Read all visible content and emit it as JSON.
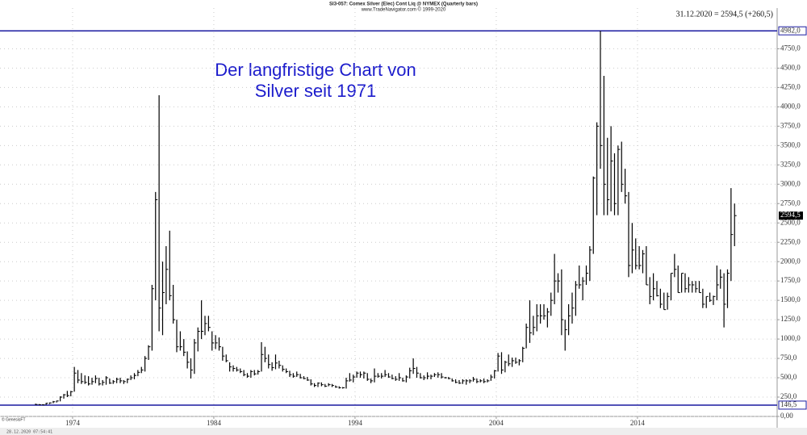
{
  "chart_data": {
    "type": "ohlc",
    "title": "SI3-057: Comex Silver (Elec) Cont Liq @ NYMEX  (Quarterly bars)",
    "subtitle": "www.TradeNavigator.com © 1999-2020",
    "last_quote": "31.12.2020 = 2594,5 (+260,5)",
    "annotation": [
      "Der langfristige Chart von",
      "Silver seit 1971"
    ],
    "source": "© GenesisFT",
    "timestamp": "28.12.2020 07:54:41",
    "color": "#000000",
    "line_color": "#1a1aa0",
    "grid": true,
    "xlim": [
      1968.86,
      2023.89
    ],
    "xticks": [
      1974,
      1984,
      1994,
      2004,
      2014
    ],
    "ylim": [
      0,
      5276
    ],
    "yticks": [
      {
        "value": 0,
        "label": "0,00"
      },
      {
        "value": 250,
        "label": "250,0"
      },
      {
        "value": 500,
        "label": "500,0"
      },
      {
        "value": 750,
        "label": "750,0"
      },
      {
        "value": 1000,
        "label": "1000,0"
      },
      {
        "value": 1250,
        "label": "1250,0"
      },
      {
        "value": 1500,
        "label": "1500,0"
      },
      {
        "value": 1750,
        "label": "1750,0"
      },
      {
        "value": 2000,
        "label": "2000,0"
      },
      {
        "value": 2250,
        "label": "2250,0"
      },
      {
        "value": 2500,
        "label": "2500,0"
      },
      {
        "value": 2750,
        "label": "2750,0"
      },
      {
        "value": 3000,
        "label": "3000,0"
      },
      {
        "value": 3250,
        "label": "3250,0"
      },
      {
        "value": 3500,
        "label": "3500,0"
      },
      {
        "value": 3750,
        "label": "3750,0"
      },
      {
        "value": 4000,
        "label": "4000,0"
      },
      {
        "value": 4250,
        "label": "4250,0"
      },
      {
        "value": 4500,
        "label": "4500,0"
      },
      {
        "value": 4750,
        "label": "4750,0"
      }
    ],
    "hlines": [
      {
        "value": 4982,
        "label": "4982,0"
      },
      {
        "value": 146.5,
        "label": "146,5"
      }
    ],
    "last_price": {
      "value": 2594.5,
      "label": "2594,5"
    },
    "x": [
      1971.375,
      1971.625,
      1971.875,
      1972.125,
      1972.375,
      1972.625,
      1972.875,
      1973.125,
      1973.375,
      1973.625,
      1973.875,
      1974.125,
      1974.375,
      1974.625,
      1974.875,
      1975.125,
      1975.375,
      1975.625,
      1975.875,
      1976.125,
      1976.375,
      1976.625,
      1976.875,
      1977.125,
      1977.375,
      1977.625,
      1977.875,
      1978.125,
      1978.375,
      1978.625,
      1978.875,
      1979.125,
      1979.375,
      1979.625,
      1979.875,
      1980.125,
      1980.375,
      1980.625,
      1980.875,
      1981.125,
      1981.375,
      1981.625,
      1981.875,
      1982.125,
      1982.375,
      1982.625,
      1982.875,
      1983.125,
      1983.375,
      1983.625,
      1983.875,
      1984.125,
      1984.375,
      1984.625,
      1984.875,
      1985.125,
      1985.375,
      1985.625,
      1985.875,
      1986.125,
      1986.375,
      1986.625,
      1986.875,
      1987.125,
      1987.375,
      1987.625,
      1987.875,
      1988.125,
      1988.375,
      1988.625,
      1988.875,
      1989.125,
      1989.375,
      1989.625,
      1989.875,
      1990.125,
      1990.375,
      1990.625,
      1990.875,
      1991.125,
      1991.375,
      1991.625,
      1991.875,
      1992.125,
      1992.375,
      1992.625,
      1992.875,
      1993.125,
      1993.375,
      1993.625,
      1993.875,
      1994.125,
      1994.375,
      1994.625,
      1994.875,
      1995.125,
      1995.375,
      1995.625,
      1995.875,
      1996.125,
      1996.375,
      1996.625,
      1996.875,
      1997.125,
      1997.375,
      1997.625,
      1997.875,
      1998.125,
      1998.375,
      1998.625,
      1998.875,
      1999.125,
      1999.375,
      1999.625,
      1999.875,
      2000.125,
      2000.375,
      2000.625,
      2000.875,
      2001.125,
      2001.375,
      2001.625,
      2001.875,
      2002.125,
      2002.375,
      2002.625,
      2002.875,
      2003.125,
      2003.375,
      2003.625,
      2003.875,
      2004.125,
      2004.375,
      2004.625,
      2004.875,
      2005.125,
      2005.375,
      2005.625,
      2005.875,
      2006.125,
      2006.375,
      2006.625,
      2006.875,
      2007.125,
      2007.375,
      2007.625,
      2007.875,
      2008.125,
      2008.375,
      2008.625,
      2008.875,
      2009.125,
      2009.375,
      2009.625,
      2009.875,
      2010.125,
      2010.375,
      2010.625,
      2010.875,
      2011.125,
      2011.375,
      2011.625,
      2011.875,
      2012.125,
      2012.375,
      2012.625,
      2012.875,
      2013.125,
      2013.375,
      2013.625,
      2013.875,
      2014.125,
      2014.375,
      2014.625,
      2014.875,
      2015.125,
      2015.375,
      2015.625,
      2015.875,
      2016.125,
      2016.375,
      2016.625,
      2016.875,
      2017.125,
      2017.375,
      2017.625,
      2017.875,
      2018.125,
      2018.375,
      2018.625,
      2018.875,
      2019.125,
      2019.375,
      2019.625,
      2019.875,
      2020.125,
      2020.375,
      2020.625,
      2020.875
    ],
    "high": [
      165,
      160,
      158,
      175,
      180,
      200,
      205,
      260,
      290,
      330,
      330,
      640,
      600,
      560,
      530,
      520,
      500,
      530,
      500,
      470,
      520,
      490,
      470,
      500,
      500,
      470,
      490,
      530,
      560,
      600,
      640,
      780,
      920,
      1700,
      2900,
      4150,
      2000,
      2200,
      2400,
      1700,
      1250,
      1100,
      1000,
      840,
      750,
      1000,
      1150,
      1500,
      1300,
      1300,
      1100,
      1050,
      1020,
      900,
      800,
      700,
      660,
      640,
      620,
      600,
      560,
      600,
      600,
      600,
      960,
      900,
      800,
      700,
      800,
      720,
      660,
      620,
      590,
      560,
      580,
      550,
      520,
      510,
      480,
      430,
      440,
      440,
      420,
      430,
      420,
      400,
      390,
      380,
      500,
      560,
      540,
      580,
      580,
      580,
      560,
      490,
      620,
      560,
      560,
      600,
      560,
      540,
      520,
      560,
      500,
      530,
      630,
      750,
      640,
      560,
      530,
      570,
      540,
      560,
      570,
      560,
      510,
      510,
      490,
      480,
      470,
      480,
      480,
      480,
      510,
      490,
      480,
      490,
      480,
      540,
      600,
      820,
      830,
      720,
      800,
      760,
      760,
      740,
      900,
      1200,
      1500,
      1300,
      1450,
      1450,
      1450,
      1400,
      1600,
      2100,
      1850,
      1900,
      1250,
      1450,
      1600,
      1750,
      1950,
      1800,
      1950,
      2200,
      3100,
      3800,
      4982,
      4400,
      3600,
      3750,
      3400,
      3500,
      3550,
      3200,
      2900,
      2500,
      2300,
      2200,
      2150,
      2200,
      1800,
      1850,
      1750,
      1650,
      1600,
      1600,
      1850,
      2100,
      1950,
      1850,
      1850,
      1800,
      1750,
      1750,
      1750,
      1650,
      1550,
      1600,
      1560,
      1950,
      1900,
      1850,
      1900,
      2950,
      2750
    ],
    "low": [
      150,
      147,
      146.5,
      150,
      160,
      170,
      180,
      195,
      230,
      250,
      260,
      320,
      430,
      420,
      420,
      400,
      410,
      430,
      400,
      400,
      410,
      420,
      420,
      430,
      430,
      420,
      430,
      470,
      480,
      520,
      560,
      580,
      730,
      850,
      1500,
      1100,
      1050,
      1450,
      1500,
      1200,
      830,
      850,
      780,
      620,
      490,
      550,
      840,
      1000,
      1050,
      1100,
      850,
      870,
      850,
      720,
      700,
      580,
      580,
      580,
      560,
      520,
      500,
      500,
      530,
      540,
      580,
      700,
      620,
      590,
      610,
      620,
      580,
      560,
      510,
      500,
      510,
      490,
      480,
      460,
      400,
      380,
      380,
      390,
      380,
      390,
      380,
      370,
      360,
      360,
      360,
      450,
      440,
      500,
      500,
      490,
      460,
      430,
      440,
      500,
      490,
      510,
      500,
      480,
      460,
      460,
      450,
      440,
      490,
      550,
      500,
      490,
      470,
      480,
      480,
      510,
      500,
      490,
      490,
      480,
      450,
      430,
      420,
      420,
      410,
      430,
      450,
      430,
      440,
      430,
      440,
      460,
      490,
      580,
      550,
      570,
      650,
      640,
      680,
      660,
      700,
      880,
      950,
      1050,
      1100,
      1200,
      1250,
      1150,
      1300,
      1450,
      1600,
      1050,
      850,
      1050,
      1200,
      1300,
      1650,
      1500,
      1700,
      1750,
      2100,
      2600,
      3200,
      2600,
      2600,
      2650,
      2600,
      2600,
      2900,
      2750,
      1800,
      1850,
      1900,
      1900,
      1850,
      1700,
      1450,
      1500,
      1550,
      1400,
      1380,
      1380,
      1500,
      1800,
      1600,
      1600,
      1600,
      1600,
      1600,
      1600,
      1600,
      1400,
      1400,
      1480,
      1440,
      1500,
      1650,
      1150,
      1400,
      1750,
      2200
    ],
    "close": [
      155,
      152,
      150,
      170,
      175,
      190,
      200,
      250,
      280,
      270,
      320,
      560,
      470,
      450,
      440,
      420,
      450,
      490,
      420,
      440,
      500,
      430,
      450,
      480,
      460,
      450,
      480,
      500,
      530,
      570,
      600,
      750,
      900,
      1650,
      2800,
      1400,
      1600,
      1900,
      1560,
      1250,
      900,
      900,
      830,
      700,
      600,
      950,
      1100,
      1100,
      1200,
      1150,
      950,
      950,
      900,
      780,
      720,
      640,
      620,
      600,
      580,
      540,
      520,
      580,
      550,
      580,
      800,
      750,
      670,
      630,
      690,
      660,
      610,
      580,
      540,
      520,
      540,
      500,
      490,
      470,
      420,
      400,
      430,
      410,
      390,
      410,
      400,
      380,
      370,
      370,
      460,
      470,
      510,
      560,
      540,
      560,
      480,
      460,
      520,
      520,
      520,
      540,
      510,
      490,
      480,
      500,
      460,
      510,
      590,
      620,
      560,
      500,
      500,
      520,
      520,
      540,
      540,
      510,
      500,
      490,
      460,
      440,
      430,
      460,
      460,
      460,
      480,
      450,
      460,
      450,
      460,
      510,
      590,
      780,
      600,
      700,
      680,
      720,
      700,
      720,
      880,
      1150,
      1080,
      1150,
      1300,
      1300,
      1300,
      1350,
      1500,
      1750,
      1750,
      1250,
      1120,
      1300,
      1400,
      1700,
      1700,
      1750,
      1850,
      2150,
      3080,
      3750,
      3500,
      3000,
      2800,
      3300,
      2750,
      3450,
      3000,
      2850,
      1950,
      2150,
      1950,
      1950,
      2100,
      1700,
      1550,
      1650,
      1560,
      1450,
      1380,
      1550,
      1850,
      1900,
      1600,
      1850,
      1650,
      1700,
      1700,
      1650,
      1600,
      1450,
      1550,
      1500,
      1550,
      1700,
      1800,
      1450,
      1850,
      2350,
      2594.5
    ]
  }
}
